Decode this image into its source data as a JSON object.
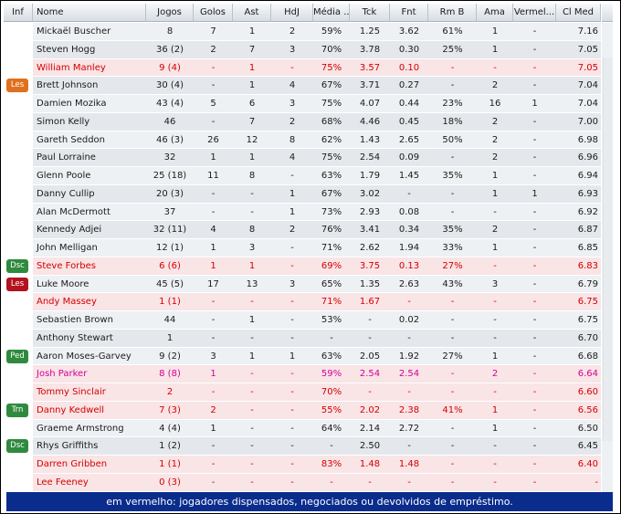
{
  "columns": [
    "Inf",
    "Nome",
    "Jogos",
    "Golos",
    "Ast",
    "HdJ",
    "Média ...",
    "Tck",
    "Fnt",
    "Rm B",
    "Ama",
    "Vermel...",
    "Cl Med"
  ],
  "badge_colors": {
    "Les": "#e0701e",
    "Dsc": "#2f8a3e",
    "Ped": "#2f8a3e",
    "Trn": "#2f8a3e",
    "Les2": "#b3121f"
  },
  "rows": [
    {
      "inf": "",
      "nome": "Mickaël Buscher",
      "jogos": "8",
      "golos": "7",
      "ast": "1",
      "hdj": "2",
      "media": "59%",
      "tck": "1.25",
      "fnt": "3.62",
      "rmb": "61%",
      "ama": "1",
      "verm": "-",
      "clmed": "7.16",
      "style": "normal"
    },
    {
      "inf": "",
      "nome": "Steven Hogg",
      "jogos": "36 (2)",
      "golos": "2",
      "ast": "7",
      "hdj": "3",
      "media": "70%",
      "tck": "3.78",
      "fnt": "0.30",
      "rmb": "25%",
      "ama": "1",
      "verm": "-",
      "clmed": "7.05",
      "style": "normal"
    },
    {
      "inf": "",
      "nome": "William Manley",
      "jogos": "9 (4)",
      "golos": "-",
      "ast": "1",
      "hdj": "-",
      "media": "75%",
      "tck": "3.57",
      "fnt": "0.10",
      "rmb": "-",
      "ama": "-",
      "verm": "-",
      "clmed": "7.05",
      "style": "red"
    },
    {
      "inf": "Les",
      "nome": "Brett Johnson",
      "jogos": "30 (4)",
      "golos": "-",
      "ast": "1",
      "hdj": "4",
      "media": "67%",
      "tck": "3.71",
      "fnt": "0.27",
      "rmb": "-",
      "ama": "2",
      "verm": "-",
      "clmed": "7.04",
      "style": "normal"
    },
    {
      "inf": "",
      "nome": "Damien Mozika",
      "jogos": "43 (4)",
      "golos": "5",
      "ast": "6",
      "hdj": "3",
      "media": "75%",
      "tck": "4.07",
      "fnt": "0.44",
      "rmb": "23%",
      "ama": "16",
      "verm": "1",
      "clmed": "7.04",
      "style": "normal"
    },
    {
      "inf": "",
      "nome": "Simon Kelly",
      "jogos": "46",
      "golos": "-",
      "ast": "7",
      "hdj": "2",
      "media": "68%",
      "tck": "4.46",
      "fnt": "0.45",
      "rmb": "18%",
      "ama": "2",
      "verm": "-",
      "clmed": "7.00",
      "style": "normal"
    },
    {
      "inf": "",
      "nome": "Gareth Seddon",
      "jogos": "46 (3)",
      "golos": "26",
      "ast": "12",
      "hdj": "8",
      "media": "62%",
      "tck": "1.43",
      "fnt": "2.65",
      "rmb": "50%",
      "ama": "2",
      "verm": "-",
      "clmed": "6.98",
      "style": "normal"
    },
    {
      "inf": "",
      "nome": "Paul Lorraine",
      "jogos": "32",
      "golos": "1",
      "ast": "1",
      "hdj": "4",
      "media": "75%",
      "tck": "2.54",
      "fnt": "0.09",
      "rmb": "-",
      "ama": "2",
      "verm": "-",
      "clmed": "6.96",
      "style": "normal"
    },
    {
      "inf": "",
      "nome": "Glenn Poole",
      "jogos": "25 (18)",
      "golos": "11",
      "ast": "8",
      "hdj": "-",
      "media": "63%",
      "tck": "1.79",
      "fnt": "1.45",
      "rmb": "35%",
      "ama": "1",
      "verm": "-",
      "clmed": "6.94",
      "style": "normal"
    },
    {
      "inf": "",
      "nome": "Danny Cullip",
      "jogos": "20 (3)",
      "golos": "-",
      "ast": "-",
      "hdj": "1",
      "media": "67%",
      "tck": "3.02",
      "fnt": "-",
      "rmb": "-",
      "ama": "1",
      "verm": "1",
      "clmed": "6.93",
      "style": "normal"
    },
    {
      "inf": "",
      "nome": "Alan McDermott",
      "jogos": "37",
      "golos": "-",
      "ast": "-",
      "hdj": "1",
      "media": "73%",
      "tck": "2.93",
      "fnt": "0.08",
      "rmb": "-",
      "ama": "-",
      "verm": "-",
      "clmed": "6.92",
      "style": "normal"
    },
    {
      "inf": "",
      "nome": "Kennedy Adjei",
      "jogos": "32 (11)",
      "golos": "4",
      "ast": "8",
      "hdj": "2",
      "media": "76%",
      "tck": "3.41",
      "fnt": "0.34",
      "rmb": "35%",
      "ama": "2",
      "verm": "-",
      "clmed": "6.87",
      "style": "normal"
    },
    {
      "inf": "",
      "nome": "John Melligan",
      "jogos": "12 (1)",
      "golos": "1",
      "ast": "3",
      "hdj": "-",
      "media": "71%",
      "tck": "2.62",
      "fnt": "1.94",
      "rmb": "33%",
      "ama": "1",
      "verm": "-",
      "clmed": "6.85",
      "style": "normal"
    },
    {
      "inf": "Dsc",
      "nome": "Steve Forbes",
      "jogos": "6 (6)",
      "golos": "1",
      "ast": "1",
      "hdj": "-",
      "media": "69%",
      "tck": "3.75",
      "fnt": "0.13",
      "rmb": "27%",
      "ama": "-",
      "verm": "-",
      "clmed": "6.83",
      "style": "red"
    },
    {
      "inf": "Les2",
      "nome": "Luke Moore",
      "jogos": "45 (5)",
      "golos": "17",
      "ast": "13",
      "hdj": "3",
      "media": "65%",
      "tck": "1.35",
      "fnt": "2.63",
      "rmb": "43%",
      "ama": "3",
      "verm": "-",
      "clmed": "6.79",
      "style": "normal"
    },
    {
      "inf": "",
      "nome": "Andy Massey",
      "jogos": "1 (1)",
      "golos": "-",
      "ast": "-",
      "hdj": "-",
      "media": "71%",
      "tck": "1.67",
      "fnt": "-",
      "rmb": "-",
      "ama": "-",
      "verm": "-",
      "clmed": "6.75",
      "style": "red"
    },
    {
      "inf": "",
      "nome": "Sebastien Brown",
      "jogos": "44",
      "golos": "-",
      "ast": "1",
      "hdj": "-",
      "media": "53%",
      "tck": "-",
      "fnt": "0.02",
      "rmb": "-",
      "ama": "-",
      "verm": "-",
      "clmed": "6.75",
      "style": "normal"
    },
    {
      "inf": "",
      "nome": "Anthony Stewart",
      "jogos": "1",
      "golos": "-",
      "ast": "-",
      "hdj": "-",
      "media": "-",
      "tck": "-",
      "fnt": "-",
      "rmb": "-",
      "ama": "-",
      "verm": "-",
      "clmed": "6.70",
      "style": "normal"
    },
    {
      "inf": "Ped",
      "nome": "Aaron Moses-Garvey",
      "jogos": "9 (2)",
      "golos": "3",
      "ast": "1",
      "hdj": "1",
      "media": "63%",
      "tck": "2.05",
      "fnt": "1.92",
      "rmb": "27%",
      "ama": "1",
      "verm": "-",
      "clmed": "6.68",
      "style": "normal"
    },
    {
      "inf": "",
      "nome": "Josh Parker",
      "jogos": "8 (8)",
      "golos": "1",
      "ast": "-",
      "hdj": "-",
      "media": "59%",
      "tck": "2.54",
      "fnt": "2.54",
      "rmb": "-",
      "ama": "2",
      "verm": "-",
      "clmed": "6.64",
      "style": "pink"
    },
    {
      "inf": "",
      "nome": "Tommy Sinclair",
      "jogos": "2",
      "golos": "-",
      "ast": "-",
      "hdj": "-",
      "media": "70%",
      "tck": "-",
      "fnt": "-",
      "rmb": "-",
      "ama": "-",
      "verm": "-",
      "clmed": "6.60",
      "style": "red"
    },
    {
      "inf": "Trn",
      "nome": "Danny Kedwell",
      "jogos": "7 (3)",
      "golos": "2",
      "ast": "-",
      "hdj": "-",
      "media": "55%",
      "tck": "2.02",
      "fnt": "2.38",
      "rmb": "41%",
      "ama": "1",
      "verm": "-",
      "clmed": "6.56",
      "style": "red"
    },
    {
      "inf": "",
      "nome": "Graeme Armstrong",
      "jogos": "4 (4)",
      "golos": "1",
      "ast": "-",
      "hdj": "-",
      "media": "64%",
      "tck": "2.14",
      "fnt": "2.72",
      "rmb": "-",
      "ama": "1",
      "verm": "-",
      "clmed": "6.50",
      "style": "normal"
    },
    {
      "inf": "Dsc",
      "nome": "Rhys Griffiths",
      "jogos": "1 (2)",
      "golos": "-",
      "ast": "-",
      "hdj": "-",
      "media": "-",
      "tck": "2.50",
      "fnt": "-",
      "rmb": "-",
      "ama": "-",
      "verm": "-",
      "clmed": "6.45",
      "style": "normal"
    },
    {
      "inf": "",
      "nome": "Darren Gribben",
      "jogos": "1 (1)",
      "golos": "-",
      "ast": "-",
      "hdj": "-",
      "media": "83%",
      "tck": "1.48",
      "fnt": "1.48",
      "rmb": "-",
      "ama": "-",
      "verm": "-",
      "clmed": "6.40",
      "style": "red"
    },
    {
      "inf": "",
      "nome": "Lee Feeney",
      "jogos": "0 (3)",
      "golos": "-",
      "ast": "-",
      "hdj": "-",
      "media": "-",
      "tck": "-",
      "fnt": "-",
      "rmb": "-",
      "ama": "-",
      "verm": "-",
      "clmed": "-",
      "style": "red"
    }
  ],
  "footer": "em vermelho: jogadores dispensados, negociados ou devolvidos de empréstimo."
}
